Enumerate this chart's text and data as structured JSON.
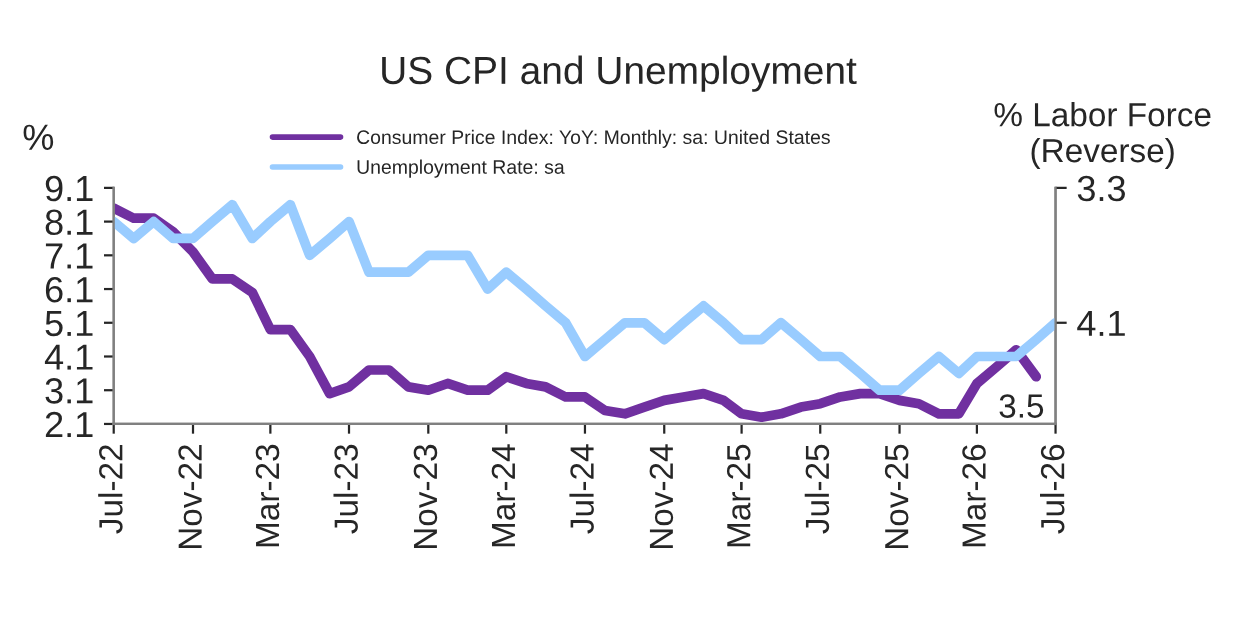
{
  "chart_data": {
    "type": "line",
    "title": "US CPI and Unemployment",
    "ylabel": "%",
    "y2label": "% Labor Force\n(Reverse)",
    "x": [
      "2022-07",
      "2022-08",
      "2022-09",
      "2022-10",
      "2022-11",
      "2022-12",
      "2023-01",
      "2023-02",
      "2023-03",
      "2023-04",
      "2023-05",
      "2023-06",
      "2023-07",
      "2023-08",
      "2023-09",
      "2023-10",
      "2023-11",
      "2023-12",
      "2024-01",
      "2024-02",
      "2024-03",
      "2024-04",
      "2024-05",
      "2024-06",
      "2024-07",
      "2024-08",
      "2024-09",
      "2024-10",
      "2024-11",
      "2024-12",
      "2025-01",
      "2025-02",
      "2025-03",
      "2025-04",
      "2025-05",
      "2025-06",
      "2025-07",
      "2025-08",
      "2025-09",
      "2025-10",
      "2025-11",
      "2025-12",
      "2026-01",
      "2026-02",
      "2026-03",
      "2026-04",
      "2026-05",
      "2026-06",
      "2026-07"
    ],
    "series": [
      {
        "name": "Consumer Price Index: YoY: Monthly: sa: United States",
        "color": "#7030a0",
        "values": [
          8.5,
          8.2,
          8.2,
          7.8,
          7.2,
          6.4,
          6.4,
          6.0,
          4.9,
          4.9,
          4.1,
          3.0,
          3.2,
          3.7,
          3.7,
          3.2,
          3.1,
          3.3,
          3.1,
          3.1,
          3.5,
          3.3,
          3.2,
          2.9,
          2.9,
          2.5,
          2.4,
          2.6,
          2.8,
          2.9,
          3.0,
          2.8,
          2.4,
          2.3,
          2.4,
          2.6,
          2.7,
          2.9,
          3.0,
          3.0,
          2.8,
          2.7,
          2.4,
          2.4,
          3.3,
          3.8,
          4.3,
          3.5,
          null
        ]
      },
      {
        "name": "Unemployment Rate: sa",
        "color": "#99ccff",
        "axis": "y2",
        "values": [
          3.5,
          3.6,
          3.5,
          3.6,
          3.6,
          3.5,
          3.4,
          3.6,
          3.5,
          3.4,
          3.7,
          3.6,
          3.5,
          3.8,
          3.8,
          3.8,
          3.7,
          3.7,
          3.7,
          3.9,
          3.8,
          3.9,
          4.0,
          4.1,
          4.3,
          4.2,
          4.1,
          4.1,
          4.2,
          4.1,
          4.0,
          4.1,
          4.2,
          4.2,
          4.1,
          4.2,
          4.3,
          4.3,
          4.4,
          4.5,
          4.5,
          4.4,
          4.3,
          4.4,
          4.3,
          4.3,
          4.3,
          4.2,
          4.1
        ]
      }
    ],
    "xlim": [
      "2022-07",
      "2026-07"
    ],
    "xticks": [
      {
        "value": "2022-07",
        "label": "Jul-22"
      },
      {
        "value": "2022-11",
        "label": "Nov-22"
      },
      {
        "value": "2023-03",
        "label": "Mar-23"
      },
      {
        "value": "2023-07",
        "label": "Jul-23"
      },
      {
        "value": "2023-11",
        "label": "Nov-23"
      },
      {
        "value": "2024-03",
        "label": "Mar-24"
      },
      {
        "value": "2024-07",
        "label": "Jul-24"
      },
      {
        "value": "2024-11",
        "label": "Nov-24"
      },
      {
        "value": "2025-03",
        "label": "Mar-25"
      },
      {
        "value": "2025-07",
        "label": "Jul-25"
      },
      {
        "value": "2025-11",
        "label": "Nov-25"
      },
      {
        "value": "2026-03",
        "label": "Mar-26"
      },
      {
        "value": "2026-07",
        "label": "Jul-26"
      }
    ],
    "ylim": [
      2.1,
      9.1
    ],
    "yticks": [
      2.1,
      3.1,
      4.1,
      5.1,
      6.1,
      7.1,
      8.1,
      9.1
    ],
    "y2lim": [
      4.7,
      3.3
    ],
    "y2ticks": [
      3.3,
      4.1
    ],
    "annotations": [
      {
        "text": "3.5",
        "x": "2026-06",
        "y": 3.5
      }
    ],
    "legend": "top",
    "grid": false
  }
}
